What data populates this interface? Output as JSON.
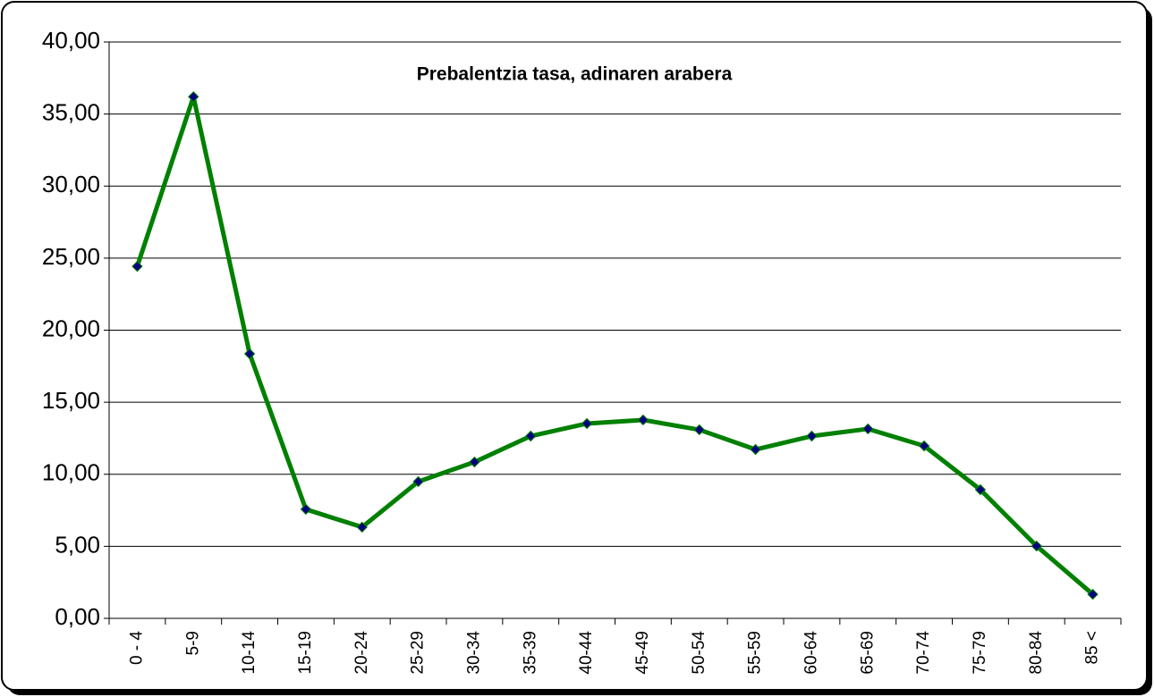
{
  "chart_data": {
    "type": "line",
    "title": "Prebalentzia tasa, adinaren arabera",
    "categories": [
      "0 - 4",
      "5-9",
      "10-14",
      "15-19",
      "20-24",
      "25-29",
      "30-34",
      "35-39",
      "40-44",
      "45-49",
      "50-54",
      "55-59",
      "60-64",
      "65-69",
      "70-74",
      "75-79",
      "80-84",
      "85 <"
    ],
    "values": [
      24.43,
      36.2,
      18.36,
      7.57,
      6.33,
      9.49,
      10.85,
      12.65,
      13.52,
      13.77,
      13.09,
      11.72,
      12.65,
      13.15,
      11.97,
      8.93,
      5.02,
      1.67
    ],
    "color": "#008000",
    "marker_color": "#000080",
    "ylim": [
      0,
      40
    ],
    "yticks": [
      {
        "value": 0,
        "label": "0,00"
      },
      {
        "value": 5,
        "label": "5,00"
      },
      {
        "value": 10,
        "label": "10,00"
      },
      {
        "value": 15,
        "label": "15,00"
      },
      {
        "value": 20,
        "label": "20,00"
      },
      {
        "value": 25,
        "label": "25,00"
      },
      {
        "value": 30,
        "label": "30,00"
      },
      {
        "value": 35,
        "label": "35,00"
      },
      {
        "value": 40,
        "label": "40,00"
      }
    ],
    "grid": true
  }
}
